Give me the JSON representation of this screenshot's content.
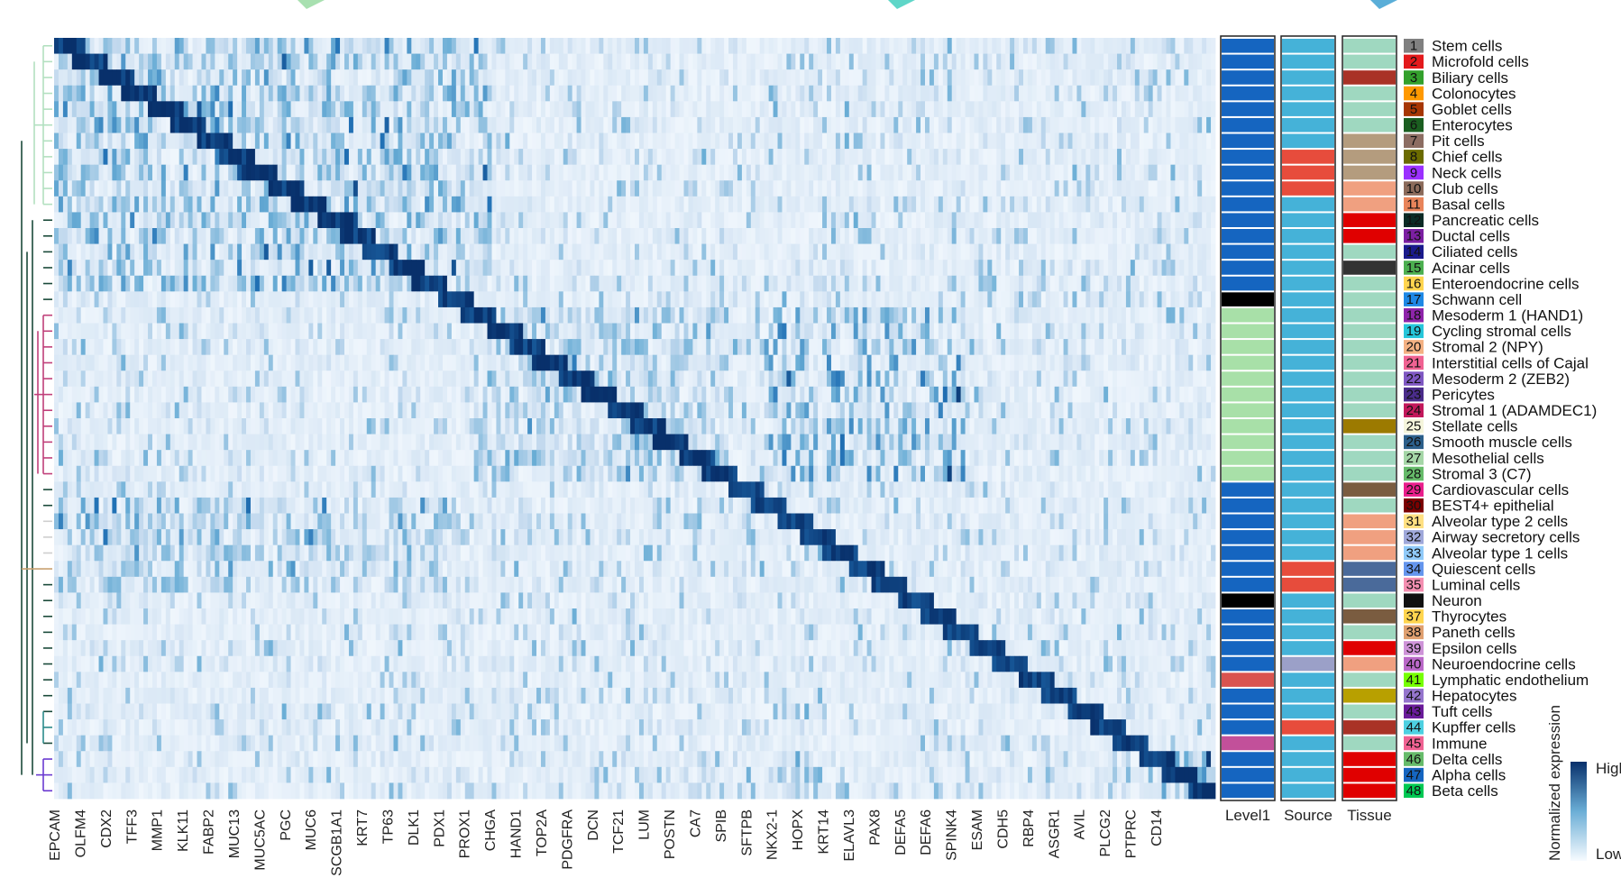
{
  "chart_data": {
    "type": "heatmap",
    "colormap": [
      "#f7fbff",
      "#c6dbef",
      "#6baed6",
      "#2171b5",
      "#08306b"
    ],
    "clusters": [
      {
        "id": "1",
        "name": "Stem cells",
        "color": "#808080"
      },
      {
        "id": "2",
        "name": "Microfold cells",
        "color": "#e31a1c"
      },
      {
        "id": "3",
        "name": "Biliary cells",
        "color": "#33a02c"
      },
      {
        "id": "4",
        "name": "Colonocytes",
        "color": "#ff9900"
      },
      {
        "id": "5",
        "name": "Goblet cells",
        "color": "#a63603"
      },
      {
        "id": "6",
        "name": "Enterocytes",
        "color": "#1b5e20"
      },
      {
        "id": "7",
        "name": "Pit cells",
        "color": "#8c6d62"
      },
      {
        "id": "8",
        "name": "Chief cells",
        "color": "#6b6b00"
      },
      {
        "id": "9",
        "name": "Neck cells",
        "color": "#9b30ff"
      },
      {
        "id": "10",
        "name": "Club cells",
        "color": "#8b6a5a"
      },
      {
        "id": "11",
        "name": "Basal cells",
        "color": "#e8845a"
      },
      {
        "id": "12",
        "name": "Pancreatic cells",
        "color": "#0b2b26"
      },
      {
        "id": "13",
        "name": "Ductal cells",
        "color": "#7b1fa2"
      },
      {
        "id": "14",
        "name": "Ciliated cells",
        "color": "#1a1a8c"
      },
      {
        "id": "15",
        "name": "Acinar cells",
        "color": "#4caf50"
      },
      {
        "id": "16",
        "name": "Enteroendocrine cells",
        "color": "#ffd54f"
      },
      {
        "id": "17",
        "name": "Schwann cell",
        "color": "#1e88e5"
      },
      {
        "id": "18",
        "name": "Mesoderm 1 (HAND1)",
        "color": "#8e24aa"
      },
      {
        "id": "19",
        "name": "Cycling stromal cells",
        "color": "#26c6da"
      },
      {
        "id": "20",
        "name": "Stromal 2 (NPY)",
        "color": "#f4b183"
      },
      {
        "id": "21",
        "name": "Interstitial cells of Cajal",
        "color": "#f06292"
      },
      {
        "id": "22",
        "name": "Mesoderm 2 (ZEB2)",
        "color": "#7e57c2"
      },
      {
        "id": "23",
        "name": "Pericytes",
        "color": "#4a2c8a"
      },
      {
        "id": "24",
        "name": "Stromal 1 (ADAMDEC1)",
        "color": "#c2185b"
      },
      {
        "id": "25",
        "name": "Stellate cells",
        "color": "#f5f5dc"
      },
      {
        "id": "26",
        "name": "Smooth muscle cells",
        "color": "#2c5f8a"
      },
      {
        "id": "27",
        "name": "Mesothelial cells",
        "color": "#a5d6a7"
      },
      {
        "id": "28",
        "name": "Stromal 3 (C7)",
        "color": "#66bb6a"
      },
      {
        "id": "29",
        "name": "Cardiovascular cells",
        "color": "#e91e8c"
      },
      {
        "id": "30",
        "name": "BEST4+ epithelial",
        "color": "#7b0000"
      },
      {
        "id": "31",
        "name": "Alveolar type 2 cells",
        "color": "#ffe082"
      },
      {
        "id": "32",
        "name": "Airway secretory cells",
        "color": "#9fa8da"
      },
      {
        "id": "33",
        "name": "Alveolar type 1 cells",
        "color": "#90caf9"
      },
      {
        "id": "34",
        "name": "Quiescent cells",
        "color": "#6495ed"
      },
      {
        "id": "35",
        "name": "Luminal cells",
        "color": "#f48fb1"
      },
      {
        "id": "36",
        "name": "Neuron",
        "color": "#111111"
      },
      {
        "id": "37",
        "name": "Thyrocytes",
        "color": "#ffd54f"
      },
      {
        "id": "38",
        "name": "Paneth cells",
        "color": "#e0a070"
      },
      {
        "id": "39",
        "name": "Epsilon cells",
        "color": "#ce93d8"
      },
      {
        "id": "40",
        "name": "Neuroendocrine cells",
        "color": "#ba68c8"
      },
      {
        "id": "41",
        "name": "Lymphatic endothelium",
        "color": "#76ff03"
      },
      {
        "id": "42",
        "name": "Hepatocytes",
        "color": "#9575cd"
      },
      {
        "id": "43",
        "name": "Tuft cells",
        "color": "#6a1b9a"
      },
      {
        "id": "44",
        "name": "Kupffer cells",
        "color": "#4dd0e1"
      },
      {
        "id": "45",
        "name": "Immune",
        "color": "#f06292"
      },
      {
        "id": "46",
        "name": "Delta cells",
        "color": "#66bb6a"
      },
      {
        "id": "47",
        "name": "Alpha cells",
        "color": "#1565c0"
      },
      {
        "id": "48",
        "name": "Beta cells",
        "color": "#00c853"
      }
    ],
    "genes": [
      "EPCAM",
      "OLFM4",
      "CDX2",
      "TFF3",
      "MMP1",
      "KLK11",
      "FABP2",
      "MUC13",
      "MUC5AC",
      "PGC",
      "MUC6",
      "SCGB1A1",
      "KRT7",
      "TP63",
      "DLK1",
      "PDX1",
      "PROX1",
      "CHGA",
      "HAND1",
      "TOP2A",
      "PDGFRA",
      "DCN",
      "TCF21",
      "LUM",
      "POSTN",
      "CA7",
      "SPIB",
      "SFTPB",
      "NKX2-1",
      "HOPX",
      "KRT14",
      "ELAVL3",
      "PAX8",
      "DEFA5",
      "DEFA6",
      "SPINK4",
      "ESAM",
      "CDH5",
      "RBP4",
      "ASGR1",
      "AVIL",
      "PLCG2",
      "PTPRC",
      "CD14"
    ],
    "annotation_tracks": [
      {
        "name": "Level1",
        "values": [
          "#1565c0",
          "#1565c0",
          "#1565c0",
          "#1565c0",
          "#1565c0",
          "#1565c0",
          "#1565c0",
          "#1565c0",
          "#1565c0",
          "#1565c0",
          "#1565c0",
          "#1565c0",
          "#1565c0",
          "#1565c0",
          "#1565c0",
          "#1565c0",
          "#000000",
          "#a8e0a8",
          "#a8e0a8",
          "#a8e0a8",
          "#a8e0a8",
          "#a8e0a8",
          "#a8e0a8",
          "#a8e0a8",
          "#a8e0a8",
          "#a8e0a8",
          "#a8e0a8",
          "#a8e0a8",
          "#1565c0",
          "#1565c0",
          "#1565c0",
          "#1565c0",
          "#1565c0",
          "#1565c0",
          "#1565c0",
          "#000000",
          "#1565c0",
          "#1565c0",
          "#1565c0",
          "#1565c0",
          "#d9534f",
          "#1565c0",
          "#1565c0",
          "#1565c0",
          "#c2509a",
          "#1565c0",
          "#1565c0",
          "#1565c0"
        ]
      },
      {
        "name": "Source",
        "values": [
          "#45b2d8",
          "#45b2d8",
          "#45b2d8",
          "#45b2d8",
          "#45b2d8",
          "#45b2d8",
          "#45b2d8",
          "#e74c3c",
          "#e74c3c",
          "#e74c3c",
          "#45b2d8",
          "#45b2d8",
          "#45b2d8",
          "#45b2d8",
          "#45b2d8",
          "#45b2d8",
          "#45b2d8",
          "#45b2d8",
          "#45b2d8",
          "#45b2d8",
          "#45b2d8",
          "#45b2d8",
          "#45b2d8",
          "#45b2d8",
          "#45b2d8",
          "#45b2d8",
          "#45b2d8",
          "#45b2d8",
          "#45b2d8",
          "#45b2d8",
          "#45b2d8",
          "#45b2d8",
          "#45b2d8",
          "#e74c3c",
          "#e74c3c",
          "#45b2d8",
          "#45b2d8",
          "#45b2d8",
          "#45b2d8",
          "#9ba0c8",
          "#45b2d8",
          "#45b2d8",
          "#45b2d8",
          "#e74c3c",
          "#45b2d8",
          "#45b2d8",
          "#45b2d8",
          "#45b2d8"
        ]
      },
      {
        "name": "Tissue",
        "values": [
          "#9fd8c0",
          "#9fd8c0",
          "#a93226",
          "#9fd8c0",
          "#9fd8c0",
          "#9fd8c0",
          "#b49c7e",
          "#b49c7e",
          "#b49c7e",
          "#f0a080",
          "#f0a080",
          "#e00000",
          "#e00000",
          "#9fd8c0",
          "#333333",
          "#9fd8c0",
          "#9fd8c0",
          "#9fd8c0",
          "#9fd8c0",
          "#9fd8c0",
          "#9fd8c0",
          "#9fd8c0",
          "#9fd8c0",
          "#9fd8c0",
          "#9c7a00",
          "#9fd8c0",
          "#9fd8c0",
          "#9fd8c0",
          "#7a5c40",
          "#9fd8c0",
          "#f0a080",
          "#f0a080",
          "#f0a080",
          "#4a6a9a",
          "#4a6a9a",
          "#9fd8c0",
          "#7a5c40",
          "#9fd8c0",
          "#e00000",
          "#f0a080",
          "#9fd8c0",
          "#b8a000",
          "#9fd8c0",
          "#a93226",
          "#9fd8c0",
          "#e00000",
          "#e00000",
          "#e00000"
        ]
      }
    ],
    "colorbar": {
      "title": "Normalized expression",
      "high": "High",
      "low": "Low"
    }
  }
}
